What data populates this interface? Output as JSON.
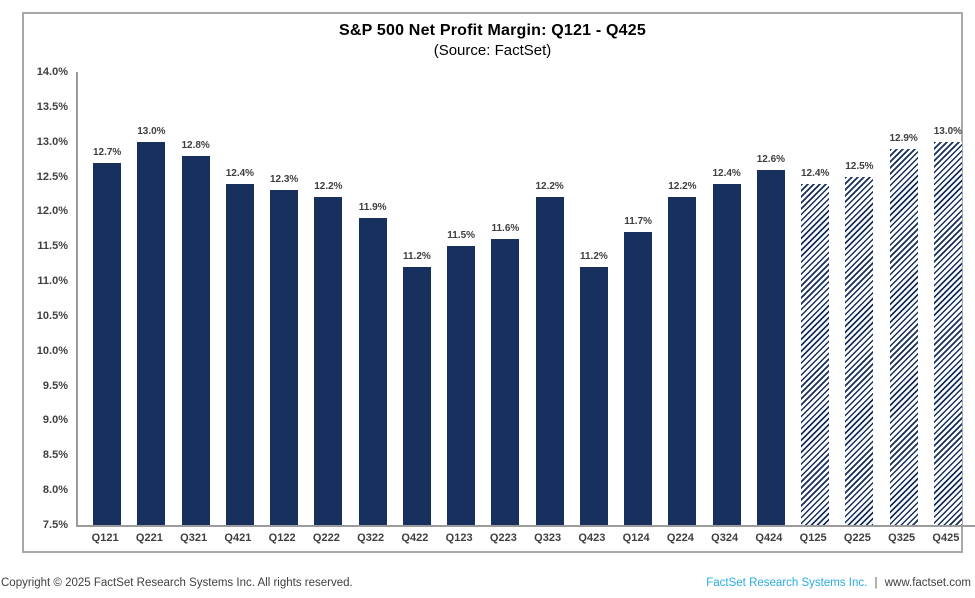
{
  "chart_data": {
    "type": "bar",
    "title": "S&P 500 Net Profit Margin: Q121 - Q425",
    "subtitle": "(Source: FactSet)",
    "categories": [
      "Q121",
      "Q221",
      "Q321",
      "Q421",
      "Q122",
      "Q222",
      "Q322",
      "Q422",
      "Q123",
      "Q223",
      "Q323",
      "Q423",
      "Q124",
      "Q224",
      "Q324",
      "Q424",
      "Q125",
      "Q225",
      "Q325",
      "Q425"
    ],
    "values": [
      12.7,
      13.0,
      12.8,
      12.4,
      12.3,
      12.2,
      11.9,
      11.2,
      11.5,
      11.6,
      12.2,
      11.2,
      11.7,
      12.2,
      12.4,
      12.6,
      12.4,
      12.5,
      12.9,
      13.0
    ],
    "data_labels": [
      "12.7%",
      "13.0%",
      "12.8%",
      "12.4%",
      "12.3%",
      "12.2%",
      "11.9%",
      "11.2%",
      "11.5%",
      "11.6%",
      "12.2%",
      "11.2%",
      "11.7%",
      "12.2%",
      "12.4%",
      "12.6%",
      "12.4%",
      "12.5%",
      "12.9%",
      "13.0%"
    ],
    "hatched": [
      false,
      false,
      false,
      false,
      false,
      false,
      false,
      false,
      false,
      false,
      false,
      false,
      false,
      false,
      false,
      false,
      true,
      true,
      true,
      true
    ],
    "ytick_labels": [
      "14.0%",
      "13.5%",
      "13.0%",
      "12.5%",
      "12.0%",
      "11.5%",
      "11.0%",
      "10.5%",
      "10.0%",
      "9.5%",
      "9.0%",
      "8.5%",
      "8.0%",
      "7.5%"
    ],
    "ylim": [
      7.5,
      14.0
    ],
    "xlabel": "",
    "ylabel": "",
    "grid": false,
    "legend": "none",
    "bar_color": "#17305E"
  },
  "footer": {
    "left_text": "Copyright © 2025 FactSet Research Systems Inc. All rights reserved.",
    "right_link": "FactSet Research Systems Inc.",
    "right_separator": "|",
    "right_domain": "www.factset.com"
  },
  "colors": {
    "bar": "#17305E",
    "axis": "#9b9b9b",
    "frame_border": "#a9a9a9",
    "label_text": "#3f3f3f",
    "footer_link": "#29ABE2"
  }
}
